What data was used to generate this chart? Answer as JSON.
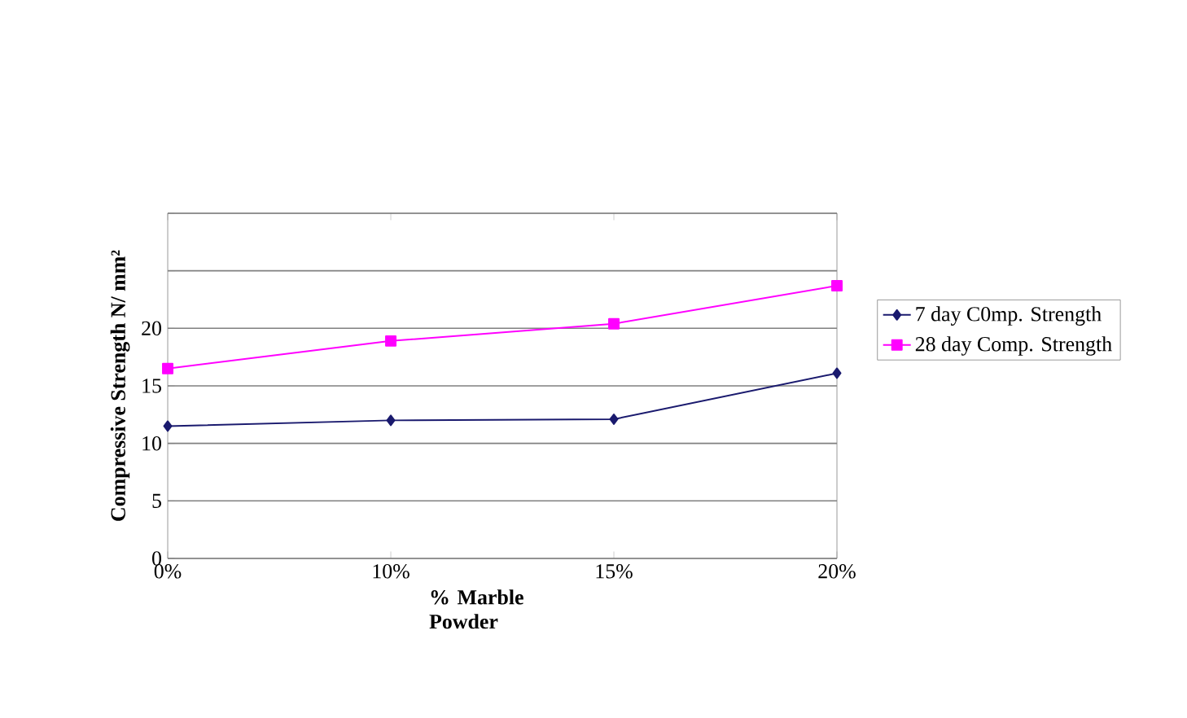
{
  "chart_data": {
    "type": "line",
    "xlabel": "% Marble Powder",
    "ylabel": "Compressive Strength N/ mm²",
    "categories": [
      "0%",
      "10%",
      "15%",
      "20%"
    ],
    "series": [
      {
        "name": "7 day C0mp. Strength",
        "color": "#1a1a6e",
        "marker": "diamond",
        "values": [
          11.5,
          12.0,
          12.1,
          16.1
        ]
      },
      {
        "name": "28 day Comp. Strength",
        "color": "#ff00ff",
        "marker": "square",
        "values": [
          16.5,
          18.9,
          20.4,
          23.7
        ]
      }
    ],
    "ylim": [
      0,
      30
    ],
    "yticks": [
      0,
      5,
      10,
      15,
      20,
      {
        "value": 25,
        "label": null
      },
      {
        "value": 30,
        "label": null
      }
    ],
    "grid": "y",
    "legend": "right"
  }
}
